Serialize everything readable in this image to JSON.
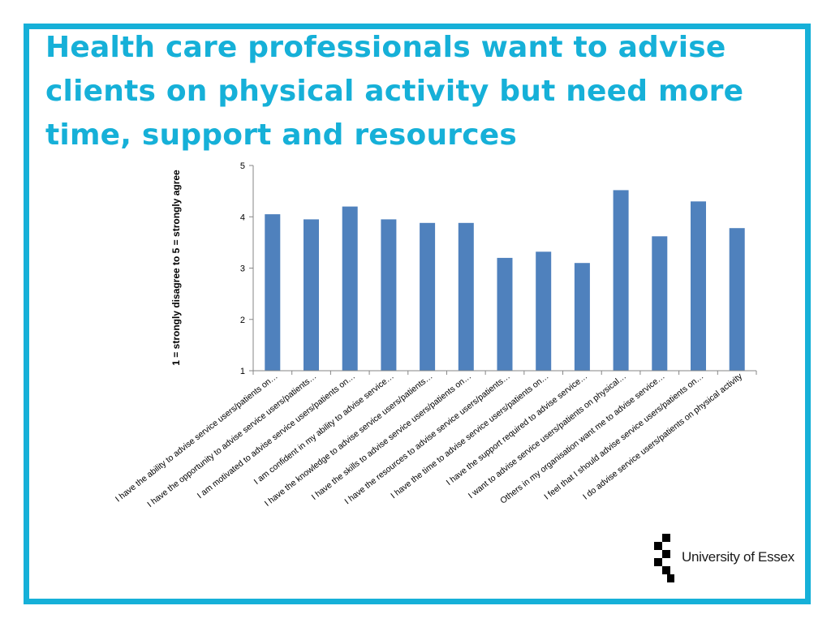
{
  "slide": {
    "title": "Health care professionals want to advise clients on physical activity but need more time, support and resources",
    "accent_color": "#16b0d8"
  },
  "logo": {
    "icon": "checkered-squares-logo",
    "text": "University of Essex"
  },
  "chart_data": {
    "type": "bar",
    "ylabel": "1 = strongly disagree to 5 = strongly agree",
    "xlabel": "",
    "ylim": [
      1,
      5
    ],
    "yticks": [
      1,
      2,
      3,
      4,
      5
    ],
    "grid": false,
    "bar_color": "#4f81bd",
    "categories": [
      "I have the ability to advise service users/patients on…",
      "I have the opportunity to advise service users/patients…",
      "I am motivated to advise service users/patients on…",
      "I am confident in my ability to advise service…",
      "I have the knowledge to advise service users/patients…",
      "I have the skills to advise service users/patients on…",
      "I have the resources to advise service users/patients…",
      "I have the time to advise service users/patients on…",
      "I have the support required to advise service…",
      "I want to advise service users/patients on physical…",
      "Others in my organisation want me to advise service…",
      "I feel that I should advise service users/patients on…",
      "I do advise service users/patients on physical activity"
    ],
    "values": [
      4.05,
      3.95,
      4.2,
      3.95,
      3.88,
      3.88,
      3.2,
      3.32,
      3.1,
      4.52,
      3.62,
      4.3,
      3.78
    ]
  }
}
